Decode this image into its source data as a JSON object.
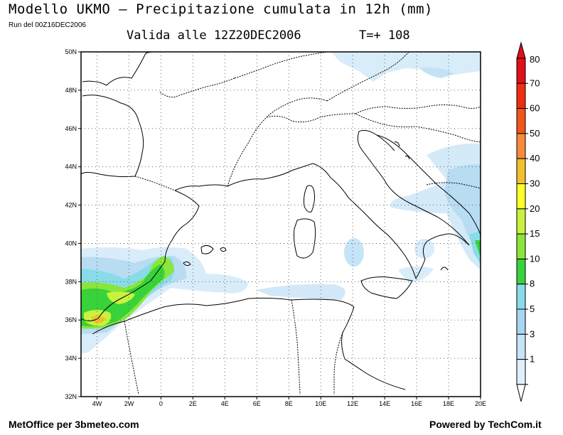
{
  "header": {
    "title": "Modello UKMO — Precipitazione cumulata in 12h (mm)",
    "run": "Run del 00Z16DEC2006",
    "valid": "Valida alle 12Z20DEC2006",
    "tplus": "T=+ 108"
  },
  "map": {
    "lon_range": [
      -5,
      20
    ],
    "lat_range": [
      32,
      50
    ],
    "lat_labels": [
      "50N",
      "48N",
      "46N",
      "44N",
      "42N",
      "40N",
      "38N",
      "36N",
      "34N",
      "32N"
    ],
    "lon_labels": [
      "4W",
      "2W",
      "0",
      "2E",
      "4E",
      "6E",
      "8E",
      "10E",
      "12E",
      "14E",
      "16E",
      "18E",
      "20E"
    ],
    "grid": true
  },
  "legend": {
    "values": [
      "80",
      "70",
      "60",
      "50",
      "40",
      "30",
      "20",
      "15",
      "10",
      "8",
      "5",
      "3",
      "1"
    ],
    "colors": [
      "#e0101a",
      "#ee2e10",
      "#f2561a",
      "#f78a3c",
      "#f2c02c",
      "#ffff28",
      "#c8f23e",
      "#8ae63a",
      "#38d23a",
      "#88dce8",
      "#a8d6f0",
      "#c6e4f8",
      "#e0f0fb"
    ]
  },
  "footer": {
    "left": "MetOffice per 3bmeteo.com",
    "right": "Powered by TechCom.it"
  }
}
